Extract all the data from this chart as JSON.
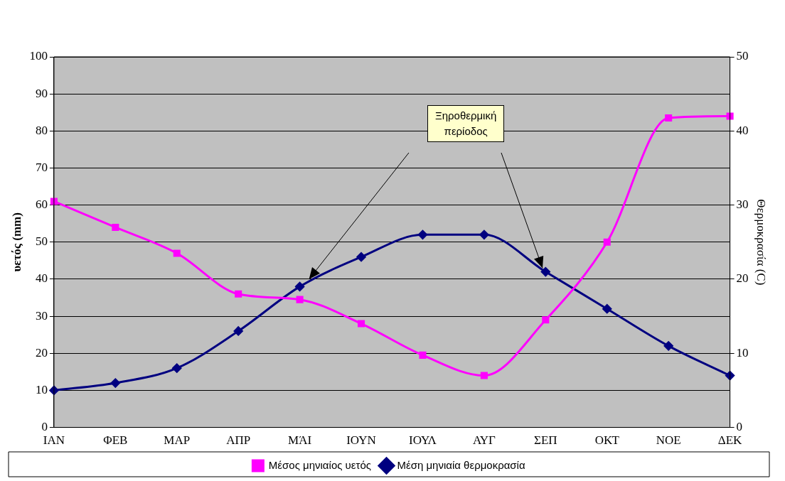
{
  "chart_data": {
    "type": "line",
    "categories": [
      "ΙΑΝ",
      "ΦΕΒ",
      "ΜΑΡ",
      "ΑΠΡ",
      "ΜΆΙ",
      "ΙΟΥΝ",
      "ΙΟΥΛ",
      "ΑΥΓ",
      "ΣΕΠ",
      "ΟΚΤ",
      "ΝΟΕ",
      "ΔΕΚ"
    ],
    "series": [
      {
        "name": "Μέσος μηνιαίος υετός",
        "color": "#ff00ff",
        "marker": "square",
        "values": [
          61,
          54,
          47,
          36,
          34.5,
          28,
          19.5,
          14,
          29,
          50,
          83.5,
          84
        ]
      },
      {
        "name": "Μέση μηνιαία θερμοκρασία",
        "color": "#000080",
        "marker": "diamond",
        "axis": "y2",
        "values": [
          5,
          6,
          8,
          13,
          19,
          23,
          26,
          26,
          21,
          16,
          11,
          7
        ]
      }
    ],
    "ylabel": "υετός (mm)",
    "y2label": "Θερμοκρασία (C)",
    "ylim": [
      0,
      100
    ],
    "yticks": [
      0,
      10,
      20,
      30,
      40,
      50,
      60,
      70,
      80,
      90,
      100
    ],
    "y2lim": [
      0,
      50
    ],
    "y2ticks": [
      0,
      10,
      20,
      30,
      40,
      50
    ],
    "annotations": [
      "Ξηροθερμική\nπερίοδος"
    ],
    "grid": "y",
    "legend": "bottom"
  }
}
